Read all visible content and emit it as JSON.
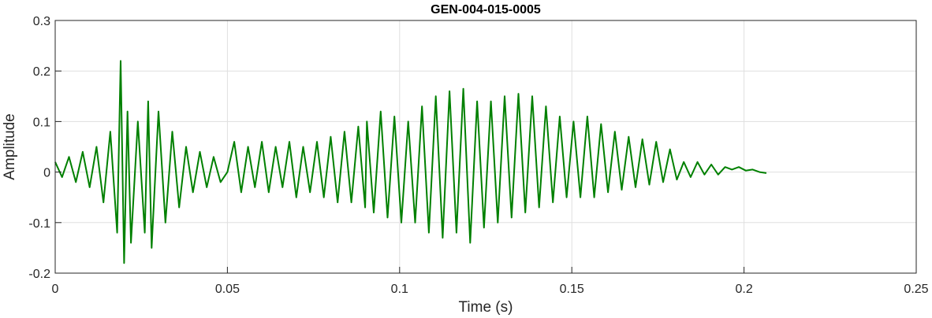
{
  "chart_data": {
    "type": "line",
    "title": "GEN-004-015-0005",
    "xlabel": "Time (s)",
    "ylabel": "Amplitude",
    "xlim": [
      0,
      0.25
    ],
    "ylim": [
      -0.2,
      0.3
    ],
    "xticks": [
      0,
      0.05,
      0.1,
      0.15,
      0.2,
      0.25
    ],
    "xtick_labels": [
      "0",
      "0.05",
      "0.1",
      "0.15",
      "0.2",
      "0.25"
    ],
    "yticks": [
      -0.2,
      -0.1,
      0,
      0.1,
      0.2,
      0.3
    ],
    "ytick_labels": [
      "-0.2",
      "-0.1",
      "0",
      "0.1",
      "0.2",
      "0.3"
    ],
    "grid": true,
    "series": [
      {
        "color": "#008000",
        "x": [
          0,
          0.002,
          0.004,
          0.006,
          0.008,
          0.01,
          0.012,
          0.014,
          0.016,
          0.018,
          0.019,
          0.02,
          0.021,
          0.022,
          0.024,
          0.026,
          0.027,
          0.028,
          0.03,
          0.032,
          0.034,
          0.036,
          0.038,
          0.04,
          0.042,
          0.044,
          0.046,
          0.048,
          0.05,
          0.052,
          0.054,
          0.056,
          0.058,
          0.06,
          0.062,
          0.064,
          0.066,
          0.068,
          0.07,
          0.072,
          0.074,
          0.076,
          0.078,
          0.08,
          0.082,
          0.084,
          0.086,
          0.088,
          0.09,
          0.0905,
          0.0925,
          0.0945,
          0.0965,
          0.0985,
          0.1005,
          0.1025,
          0.1045,
          0.1065,
          0.1085,
          0.1105,
          0.1125,
          0.1145,
          0.1165,
          0.1185,
          0.1205,
          0.1225,
          0.1245,
          0.1265,
          0.1285,
          0.1305,
          0.1325,
          0.1345,
          0.1365,
          0.1385,
          0.1405,
          0.1425,
          0.1445,
          0.1465,
          0.1485,
          0.1505,
          0.1525,
          0.1545,
          0.1565,
          0.1585,
          0.1605,
          0.1625,
          0.1645,
          0.1665,
          0.1685,
          0.1705,
          0.1725,
          0.1745,
          0.1765,
          0.1785,
          0.1805,
          0.1825,
          0.1845,
          0.1865,
          0.1885,
          0.1905,
          0.1925,
          0.1945,
          0.1965,
          0.1985,
          0.2005,
          0.2025,
          0.2045,
          0.2065
        ],
        "y": [
          0.02,
          -0.01,
          0.03,
          -0.02,
          0.04,
          -0.03,
          0.05,
          -0.06,
          0.08,
          -0.12,
          0.22,
          -0.18,
          0.12,
          -0.14,
          0.1,
          -0.12,
          0.14,
          -0.15,
          0.12,
          -0.1,
          0.08,
          -0.07,
          0.05,
          -0.04,
          0.04,
          -0.03,
          0.03,
          -0.02,
          0.0,
          0.06,
          -0.04,
          0.05,
          -0.03,
          0.06,
          -0.04,
          0.05,
          -0.03,
          0.06,
          -0.05,
          0.05,
          -0.04,
          0.06,
          -0.05,
          0.07,
          -0.06,
          0.08,
          -0.06,
          0.09,
          -0.07,
          0.1,
          -0.08,
          0.12,
          -0.09,
          0.11,
          -0.1,
          0.1,
          -0.1,
          0.13,
          -0.12,
          0.15,
          -0.13,
          0.16,
          -0.12,
          0.165,
          -0.14,
          0.14,
          -0.11,
          0.14,
          -0.1,
          0.15,
          -0.09,
          0.155,
          -0.08,
          0.15,
          -0.07,
          0.13,
          -0.06,
          0.11,
          -0.05,
          0.1,
          -0.05,
          0.11,
          -0.05,
          0.095,
          -0.04,
          0.08,
          -0.035,
          0.07,
          -0.03,
          0.065,
          -0.025,
          0.06,
          -0.02,
          0.045,
          -0.015,
          0.02,
          -0.01,
          0.02,
          -0.005,
          0.015,
          -0.005,
          0.01,
          0.005,
          0.01,
          0.003,
          0.005,
          0.0,
          -0.002
        ]
      }
    ]
  }
}
